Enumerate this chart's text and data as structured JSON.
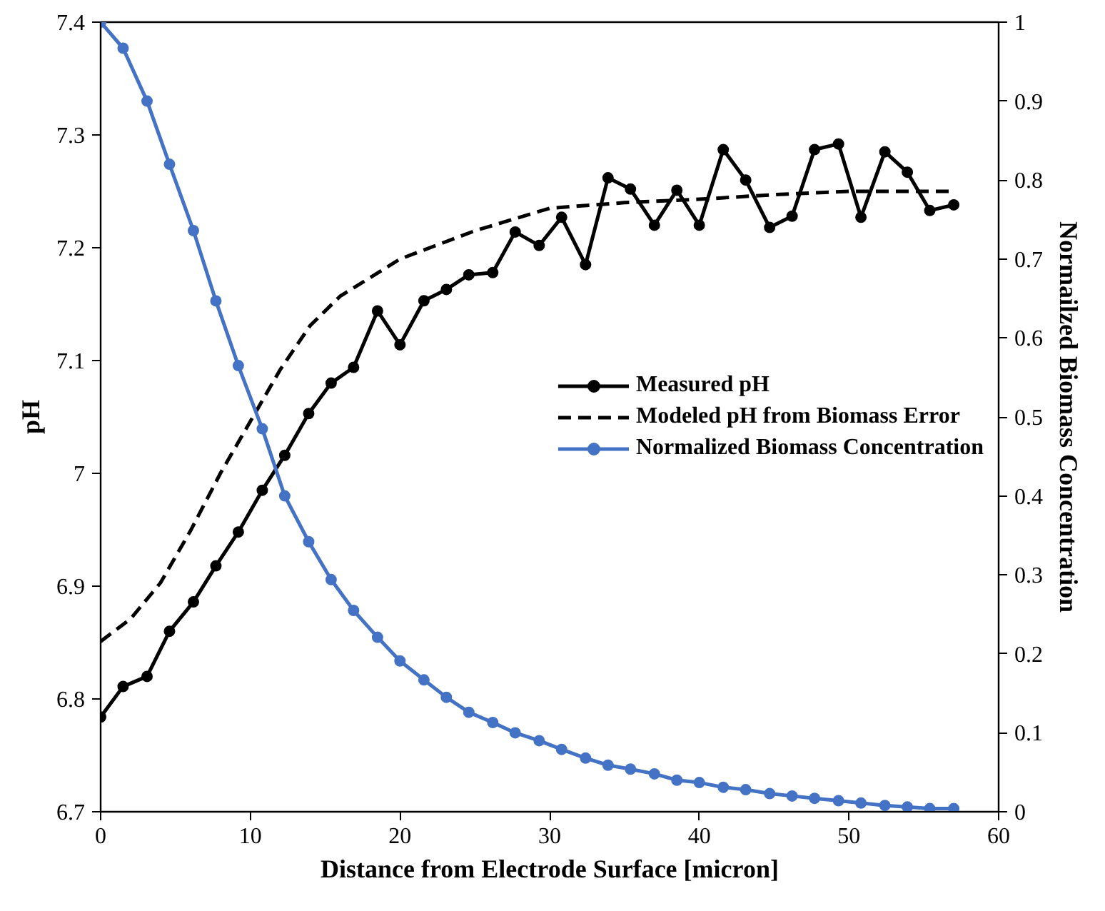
{
  "chart_data": {
    "type": "line",
    "xlabel": "Distance from Electrode Surface [micron]",
    "ylabel": "pH",
    "y2label": "Normailzed Biomass Concentration",
    "xlim": [
      0,
      60
    ],
    "xticks": [
      0,
      10,
      20,
      30,
      40,
      50,
      60
    ],
    "ylim": [
      6.7,
      7.4
    ],
    "yticks": [
      6.7,
      6.8,
      6.9,
      7,
      7.1,
      7.2,
      7.3,
      7.4
    ],
    "y2lim": [
      0,
      1
    ],
    "y2ticks": [
      0,
      0.1,
      0.2,
      0.3,
      0.4,
      0.5,
      0.6,
      0.7,
      0.8,
      0.9,
      1
    ],
    "grid": false,
    "legend": "right",
    "x": [
      0,
      1.5,
      3.1,
      4.6,
      6.2,
      7.7,
      9.2,
      10.8,
      12.3,
      13.9,
      15.4,
      16.9,
      18.5,
      20,
      21.6,
      23.1,
      24.6,
      26.2,
      27.7,
      29.3,
      30.8,
      32.4,
      33.9,
      35.4,
      37,
      38.5,
      40,
      41.6,
      43.1,
      44.7,
      46.2,
      47.7,
      49.3,
      50.8,
      52.4,
      53.9,
      55.4,
      57
    ],
    "series": [
      {
        "name": "Measured pH",
        "color": "#000000",
        "marker": "circle",
        "line_style": "solid",
        "values": [
          6.784,
          6.811,
          6.82,
          6.86,
          6.886,
          6.918,
          6.948,
          6.985,
          7.016,
          7.053,
          7.08,
          7.094,
          7.144,
          7.114,
          7.153,
          7.163,
          7.176,
          7.178,
          7.214,
          7.202,
          7.227,
          7.185,
          7.262,
          7.252,
          7.22,
          7.251,
          7.22,
          7.287,
          7.26,
          7.218,
          7.228,
          7.287,
          7.292,
          7.227,
          7.285,
          7.267,
          7.233,
          7.238
        ]
      },
      {
        "name": "Modeled pH from Biomass Error",
        "color": "#000000",
        "marker": "none",
        "line_style": "dashed",
        "x": [
          0,
          2,
          4,
          6,
          8,
          10,
          12,
          14,
          16,
          20,
          25,
          30,
          35,
          40,
          45,
          50,
          57
        ],
        "values": [
          6.851,
          6.871,
          6.903,
          6.949,
          7.0,
          7.046,
          7.092,
          7.131,
          7.157,
          7.19,
          7.215,
          7.235,
          7.24,
          7.243,
          7.247,
          7.25,
          7.25
        ]
      },
      {
        "name": "Normalized Biomass Concentration",
        "color": "#4472c4",
        "marker": "circle",
        "line_style": "solid",
        "axis": "y2",
        "values": [
          1.0,
          0.967,
          0.9,
          0.82,
          0.736,
          0.647,
          0.565,
          0.485,
          0.4,
          0.342,
          0.294,
          0.255,
          0.221,
          0.191,
          0.167,
          0.145,
          0.126,
          0.113,
          0.1,
          0.09,
          0.079,
          0.068,
          0.059,
          0.054,
          0.048,
          0.04,
          0.037,
          0.031,
          0.028,
          0.023,
          0.02,
          0.017,
          0.014,
          0.011,
          0.008,
          0.006,
          0.004,
          0.004
        ]
      }
    ]
  }
}
